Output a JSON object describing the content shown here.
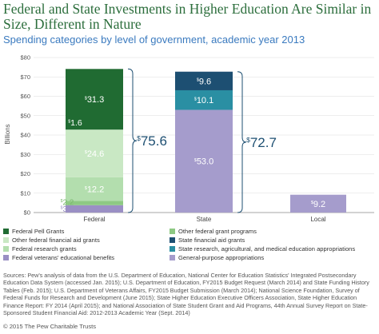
{
  "chart_data": {
    "type": "bar",
    "stacked": true,
    "title": "Federal and State Investments in Higher Education Are Similar in Size, Different in Nature",
    "subtitle": "Spending categories by level of government, academic year 2013",
    "ylabel": "Billions",
    "ylim": [
      0,
      80
    ],
    "yticks": [
      "$0",
      "$10",
      "$20",
      "$30",
      "$40",
      "$50",
      "$60",
      "$70",
      "$80"
    ],
    "grid": true,
    "categories": [
      "Federal",
      "State",
      "Local"
    ],
    "series": [
      {
        "name": "General-purpose appropriations",
        "color": "#a59ccc",
        "values": [
          0,
          53.0,
          9.2
        ],
        "labels": [
          "",
          "$53.0",
          "$9.2"
        ]
      },
      {
        "name": "Federal veterans' educational benefits",
        "color": "#9a8fc4",
        "values": [
          3.8,
          0,
          0
        ],
        "labels": [
          "$3.8",
          "",
          ""
        ]
      },
      {
        "name": "Other federal grant programs",
        "color": "#8ec983",
        "values": [
          2.2,
          0,
          0
        ],
        "labels": [
          "$2.2",
          "",
          ""
        ]
      },
      {
        "name": "Federal research grants",
        "color": "#b3deae",
        "values": [
          12.2,
          0,
          0
        ],
        "labels": [
          "$12.2",
          "",
          ""
        ]
      },
      {
        "name": "Other federal financial aid grants",
        "color": "#c9e8c4",
        "values": [
          24.6,
          0,
          0
        ],
        "labels": [
          "$24.6",
          "",
          ""
        ]
      },
      {
        "name": "Federal Pell Grants",
        "color": "#206b32",
        "values": [
          31.3,
          0,
          0
        ],
        "labels": [
          "$31.3",
          "",
          ""
        ]
      },
      {
        "name": "State research, agricultural, and medical education appropriations",
        "color": "#2a8fa3",
        "values": [
          0,
          10.1,
          0
        ],
        "labels": [
          "",
          "$10.1",
          ""
        ]
      },
      {
        "name": "State financial aid grants",
        "color": "#1d4f72",
        "values": [
          0,
          9.6,
          0
        ],
        "labels": [
          "",
          "$9.6",
          ""
        ]
      }
    ],
    "callouts": [
      {
        "category": "Federal",
        "label": "$1.6",
        "value": 1.6
      }
    ],
    "totals": [
      {
        "category": "Federal",
        "label": "$75.6"
      },
      {
        "category": "State",
        "label": "$72.7"
      }
    ]
  },
  "legend": [
    {
      "name": "Federal Pell Grants",
      "color": "#206b32"
    },
    {
      "name": "Other federal grant programs",
      "color": "#8ec983"
    },
    {
      "name": "Other federal financial aid grants",
      "color": "#c9e8c4"
    },
    {
      "name": "State financial aid grants",
      "color": "#1d4f72"
    },
    {
      "name": "Federal research grants",
      "color": "#b3deae"
    },
    {
      "name": "State research, agricultural, and medical education appropriations",
      "color": "#2a8fa3"
    },
    {
      "name": "Federal veterans' educational benefits",
      "color": "#9a8fc4"
    },
    {
      "name": "General-purpose appropriations",
      "color": "#a59ccc"
    }
  ],
  "sources": "Sources: Pew's analysis of data from the U.S. Department of Education, National Center for Education Statistics' Integrated Postsecondary Education Data System (accessed Jan. 2015); U.S. Department of Education, FY2015 Budget Request (March 2014) and State Funding History Tables (Feb. 2015); U.S. Department of Veterans Affairs, FY2015 Budget Submission (March 2014); National Science Foundation, Survey of Federal Funds for Research and Development (June 2015); State Higher Education Executive Officers Association, State Higher Education Finance Report: FY 2014 (April 2015); and National Association of State Student Grant and Aid Programs, 44th Annual Survey Report on State-Sponsored Student Financial Aid: 2012-2013 Academic Year (Sept. 2014)",
  "copyright": "© 2015 The Pew Charitable Trusts"
}
